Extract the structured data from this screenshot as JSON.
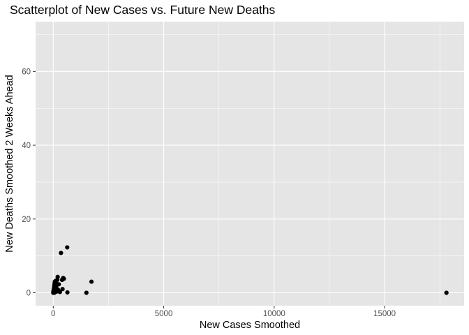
{
  "chart_data": {
    "type": "scatter",
    "title": "Scatterplot of New Cases vs. Future New Deaths",
    "xlabel": "New Cases Smoothed",
    "ylabel": "New Deaths Smoothed 2 Weeks Ahead",
    "xlim": [
      -800,
      18600
    ],
    "ylim": [
      -3.5,
      73.5
    ],
    "xticks": [
      0,
      5000,
      10000,
      15000
    ],
    "xtick_labels": [
      "0",
      "5000",
      "10000",
      "15000"
    ],
    "yticks": [
      0,
      20,
      40,
      60
    ],
    "ytick_labels": [
      "0",
      "20",
      "40",
      "60"
    ],
    "grid": true,
    "legend": "none",
    "colors": {
      "panel": "#e5e5e5",
      "grid": "#ffffff",
      "point": "#000000"
    },
    "points": [
      {
        "x": 0,
        "y": 0
      },
      {
        "x": 5,
        "y": 0.2
      },
      {
        "x": 10,
        "y": 0.5
      },
      {
        "x": 15,
        "y": 0.1
      },
      {
        "x": 20,
        "y": 0.8
      },
      {
        "x": 25,
        "y": 0.3
      },
      {
        "x": 30,
        "y": 1.0
      },
      {
        "x": 35,
        "y": 0.6
      },
      {
        "x": 40,
        "y": 1.5
      },
      {
        "x": 45,
        "y": 0
      },
      {
        "x": 50,
        "y": 2.0
      },
      {
        "x": 55,
        "y": 1.2
      },
      {
        "x": 60,
        "y": 2.5
      },
      {
        "x": 65,
        "y": 0.4
      },
      {
        "x": 70,
        "y": 3.0
      },
      {
        "x": 75,
        "y": 1.8
      },
      {
        "x": 80,
        "y": 0.2
      },
      {
        "x": 90,
        "y": 0.9
      },
      {
        "x": 100,
        "y": 3.2
      },
      {
        "x": 110,
        "y": 0.5
      },
      {
        "x": 120,
        "y": 2.8
      },
      {
        "x": 130,
        "y": 1.5
      },
      {
        "x": 140,
        "y": 0.3
      },
      {
        "x": 150,
        "y": 2.2
      },
      {
        "x": 160,
        "y": 1.0
      },
      {
        "x": 170,
        "y": 0.7
      },
      {
        "x": 180,
        "y": 3.5
      },
      {
        "x": 200,
        "y": 4.3
      },
      {
        "x": 220,
        "y": 0.8
      },
      {
        "x": 250,
        "y": 2.3
      },
      {
        "x": 300,
        "y": 0.2
      },
      {
        "x": 350,
        "y": 10.8
      },
      {
        "x": 400,
        "y": 3.5
      },
      {
        "x": 420,
        "y": 1.0
      },
      {
        "x": 450,
        "y": 4.0
      },
      {
        "x": 480,
        "y": 3.8
      },
      {
        "x": 630,
        "y": 12.3
      },
      {
        "x": 640,
        "y": 0.1
      },
      {
        "x": 1500,
        "y": 0
      },
      {
        "x": 1730,
        "y": 3.0
      },
      {
        "x": 17800,
        "y": 0
      }
    ]
  }
}
